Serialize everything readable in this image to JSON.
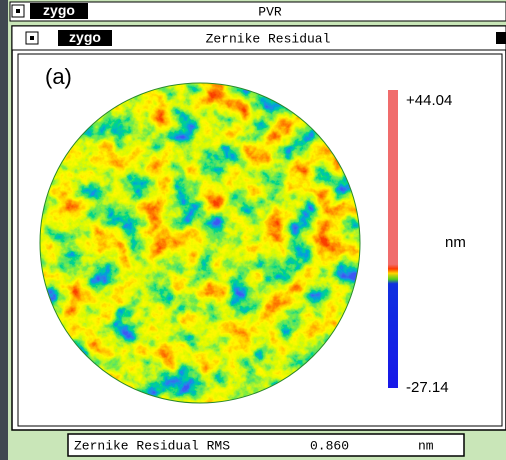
{
  "outer_window": {
    "logo": "zygo",
    "title": "PVR"
  },
  "inner_window": {
    "logo": "zygo",
    "title": "Zernike Residual"
  },
  "map": {
    "panel_label": "(a)",
    "scale_max": "+44.04",
    "unit": "nm",
    "scale_min": "-27.14"
  },
  "status": {
    "label": "Zernike Residual RMS",
    "value": "0.860",
    "unit": "nm"
  }
}
